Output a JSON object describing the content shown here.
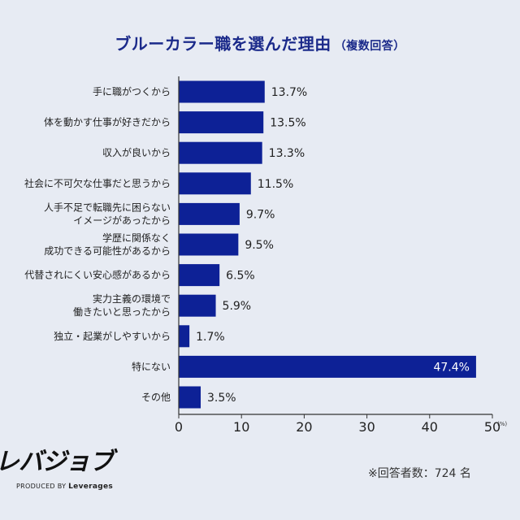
{
  "chart_data": {
    "type": "bar",
    "orientation": "horizontal",
    "title": "ブルーカラー職を選んだ理由",
    "subtitle": "（複数回答）",
    "categories": [
      [
        "手に職がつくから"
      ],
      [
        "体を動かす仕事が好きだから"
      ],
      [
        "収入が良いから"
      ],
      [
        "社会に不可欠な仕事だと思うから"
      ],
      [
        "人手不足で転職先に困らない",
        "イメージがあったから"
      ],
      [
        "学歴に関係なく",
        "成功できる可能性があるから"
      ],
      [
        "代替されにくい安心感があるから"
      ],
      [
        "実力主義の環境で",
        "働きたいと思ったから"
      ],
      [
        "独立・起業がしやすいから"
      ],
      [
        "特にない"
      ],
      [
        "その他"
      ]
    ],
    "values": [
      13.7,
      13.5,
      13.3,
      11.5,
      9.7,
      9.5,
      6.5,
      5.9,
      1.7,
      47.4,
      3.5
    ],
    "value_labels": [
      "13.7%",
      "13.5%",
      "13.3%",
      "11.5%",
      "9.7%",
      "9.5%",
      "6.5%",
      "5.9%",
      "1.7%",
      "47.4%",
      "3.5%"
    ],
    "xlim": [
      0,
      50
    ],
    "xticks": [
      0,
      10,
      20,
      30,
      40,
      50
    ],
    "xtick_labels": [
      "0",
      "10",
      "20",
      "30",
      "40",
      "50"
    ],
    "x_unit": "(%)",
    "bar_color": "#0d2196",
    "grid": false
  },
  "footer": {
    "logo_text": "レバジョブ",
    "produced_by": "PRODUCED BY",
    "company": "Leverages",
    "respondents_note": "※回答者数：724 名"
  }
}
